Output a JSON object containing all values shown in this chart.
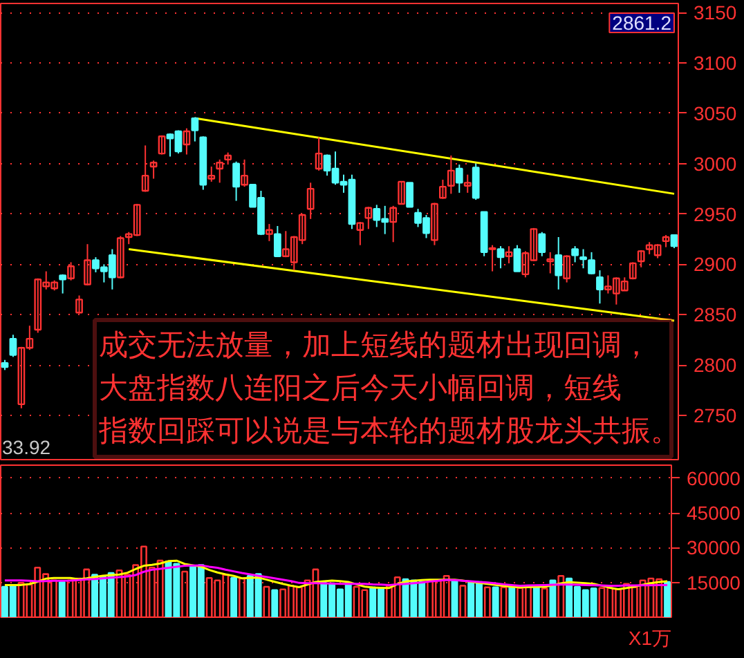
{
  "chart_data": [
    {
      "type": "candlestick",
      "categories": [
        null,
        null,
        null,
        null,
        null,
        null,
        null,
        null,
        null,
        null,
        null,
        null,
        null,
        null,
        null,
        null,
        null,
        null,
        null,
        null,
        null,
        null,
        null,
        null,
        null,
        null,
        null,
        null,
        null,
        null,
        null,
        null,
        null,
        null,
        null,
        null,
        null,
        null,
        null,
        null,
        null,
        null,
        null,
        null,
        null,
        null,
        null,
        null,
        null,
        null,
        null,
        null,
        null,
        null,
        null,
        null,
        null,
        null,
        null,
        null,
        null,
        null,
        null,
        null,
        null,
        null,
        null,
        null,
        null,
        null,
        null,
        null,
        null,
        null,
        null,
        null,
        null,
        null,
        null,
        null,
        null,
        null
      ],
      "ohlc": [
        [
          2802,
          2805,
          2795,
          2798
        ],
        [
          2826,
          2830,
          2808,
          2810
        ],
        [
          2761,
          2818,
          2757,
          2817
        ],
        [
          2817,
          2839,
          2815,
          2826
        ],
        [
          2835,
          2886,
          2832,
          2885
        ],
        [
          2878,
          2893,
          2875,
          2882
        ],
        [
          2876,
          2884,
          2874,
          2882
        ],
        [
          2889,
          2890,
          2871,
          2885
        ],
        [
          2886,
          2902,
          2884,
          2898
        ],
        [
          2852,
          2869,
          2851,
          2865
        ],
        [
          2880,
          2920,
          2879,
          2904
        ],
        [
          2904,
          2907,
          2892,
          2896
        ],
        [
          2897,
          2900,
          2882,
          2893
        ],
        [
          2909,
          2915,
          2875,
          2887
        ],
        [
          2887,
          2928,
          2886,
          2926
        ],
        [
          2927,
          2932,
          2920,
          2930
        ],
        [
          2929,
          2960,
          2928,
          2959
        ],
        [
          2973,
          3018,
          2972,
          2988
        ],
        [
          2997,
          3003,
          2985,
          3001
        ],
        [
          3010,
          3028,
          3009,
          3027
        ],
        [
          3029,
          3030,
          3007,
          3025
        ],
        [
          3032,
          3033,
          3010,
          3012
        ],
        [
          3019,
          3035,
          3009,
          3032
        ],
        [
          3045,
          3046,
          3022,
          3033
        ],
        [
          3026,
          3027,
          2974,
          2979
        ],
        [
          2985,
          2997,
          2982,
          2988
        ],
        [
          2995,
          3004,
          2981,
          3001
        ],
        [
          3004,
          3011,
          2999,
          3008
        ],
        [
          3000,
          3002,
          2963,
          2977
        ],
        [
          2979,
          3004,
          2977,
          2988
        ],
        [
          2979,
          2979,
          2957,
          2957
        ],
        [
          2966,
          2973,
          2929,
          2930
        ],
        [
          2930,
          2940,
          2923,
          2934
        ],
        [
          2930,
          2938,
          2908,
          2908
        ],
        [
          2908,
          2933,
          2907,
          2915
        ],
        [
          2902,
          2928,
          2894,
          2927
        ],
        [
          2924,
          2950,
          2920,
          2949
        ],
        [
          2955,
          2981,
          2945,
          2975
        ],
        [
          2995,
          3026,
          2993,
          3010
        ],
        [
          3008,
          3009,
          2988,
          2993
        ],
        [
          2995,
          3012,
          2979,
          2981
        ],
        [
          2982,
          2989,
          2971,
          2979
        ],
        [
          2984,
          2989,
          2935,
          2940
        ],
        [
          2934,
          2942,
          2919,
          2941
        ],
        [
          2946,
          2957,
          2935,
          2956
        ],
        [
          2955,
          2959,
          2937,
          2944
        ],
        [
          2945,
          2958,
          2930,
          2942
        ],
        [
          2942,
          2958,
          2922,
          2956
        ],
        [
          2960,
          2982,
          2960,
          2982
        ],
        [
          2981,
          2981,
          2957,
          2957
        ],
        [
          2951,
          2955,
          2937,
          2941
        ],
        [
          2946,
          2949,
          2926,
          2931
        ],
        [
          2924,
          2961,
          2919,
          2960
        ],
        [
          2966,
          2984,
          2965,
          2977
        ],
        [
          2978,
          3008,
          2970,
          2993
        ],
        [
          2995,
          2999,
          2971,
          2981
        ],
        [
          2978,
          2989,
          2971,
          2981
        ],
        [
          2996,
          3000,
          2964,
          2966
        ],
        [
          2952,
          2952,
          2908,
          2912
        ],
        [
          2915,
          2919,
          2893,
          2916
        ],
        [
          2915,
          2918,
          2896,
          2907
        ],
        [
          2908,
          2918,
          2901,
          2912
        ],
        [
          2915,
          2919,
          2893,
          2893
        ],
        [
          2890,
          2913,
          2887,
          2911
        ],
        [
          2904,
          2936,
          2903,
          2935
        ],
        [
          2930,
          2932,
          2908,
          2912
        ],
        [
          2903,
          2912,
          2891,
          2905
        ],
        [
          2909,
          2927,
          2875,
          2889
        ],
        [
          2886,
          2909,
          2882,
          2908
        ],
        [
          2915,
          2918,
          2902,
          2909
        ],
        [
          2907,
          2915,
          2896,
          2905
        ],
        [
          2904,
          2912,
          2890,
          2891
        ],
        [
          2887,
          2894,
          2861,
          2875
        ],
        [
          2875,
          2889,
          2871,
          2878
        ],
        [
          2871,
          2887,
          2860,
          2886
        ],
        [
          2874,
          2887,
          2874,
          2883
        ],
        [
          2886,
          2902,
          2885,
          2901
        ],
        [
          2903,
          2914,
          2897,
          2913
        ],
        [
          2915,
          2922,
          2910,
          2919
        ],
        [
          2909,
          2920,
          2906,
          2919
        ],
        [
          2923,
          2929,
          2917,
          2927
        ],
        [
          2929,
          2929,
          2916,
          2918
        ]
      ],
      "colors": [
        "#54fcfc",
        "#54fcfc",
        "#ff3232",
        "#ff3232",
        "#ff3232",
        "#ff3232",
        "#ff3232",
        "#54fcfc",
        "#ff3232",
        "#ff3232",
        "#ff3232",
        "#54fcfc",
        "#54fcfc",
        "#54fcfc",
        "#ff3232",
        "#ff3232",
        "#ff3232",
        "#ff3232",
        "#ff3232",
        "#ff3232",
        "#54fcfc",
        "#54fcfc",
        "#ff3232",
        "#54fcfc",
        "#54fcfc",
        "#ff3232",
        "#ff3232",
        "#ff3232",
        "#54fcfc",
        "#ff3232",
        "#54fcfc",
        "#54fcfc",
        "#ff3232",
        "#54fcfc",
        "#ff3232",
        "#ff3232",
        "#ff3232",
        "#ff3232",
        "#ff3232",
        "#54fcfc",
        "#54fcfc",
        "#54fcfc",
        "#54fcfc",
        "#ff3232",
        "#ff3232",
        "#54fcfc",
        "#54fcfc",
        "#ff3232",
        "#ff3232",
        "#54fcfc",
        "#54fcfc",
        "#54fcfc",
        "#ff3232",
        "#ff3232",
        "#ff3232",
        "#54fcfc",
        "#ff3232",
        "#54fcfc",
        "#54fcfc",
        "#ff3232",
        "#54fcfc",
        "#ff3232",
        "#54fcfc",
        "#ff3232",
        "#ff3232",
        "#54fcfc",
        "#ff3232",
        "#54fcfc",
        "#ff3232",
        "#54fcfc",
        "#54fcfc",
        "#54fcfc",
        "#54fcfc",
        "#ff3232",
        "#ff3232",
        "#ff3232",
        "#ff3232",
        "#ff3232",
        "#ff3232",
        "#ff3232",
        "#ff3232",
        "#54fcfc"
      ],
      "series": [
        {
          "type": "line",
          "color": "#ffff00",
          "values": [
            null,
            null,
            null,
            null,
            null,
            null,
            null,
            null,
            null,
            null,
            null,
            null,
            null,
            null,
            null,
            null,
            null,
            null,
            null,
            null,
            null,
            null,
            null,
            3045,
            null,
            null,
            null,
            null,
            null,
            null,
            null,
            null,
            null,
            null,
            null,
            null,
            null,
            null,
            null,
            null,
            null,
            null,
            null,
            null,
            null,
            null,
            null,
            null,
            null,
            null,
            null,
            null,
            null,
            null,
            null,
            null,
            null,
            null,
            null,
            null,
            null,
            null,
            null,
            null,
            null,
            null,
            null,
            null,
            null,
            null,
            null,
            null,
            null,
            null,
            null,
            null,
            null,
            null,
            null,
            null,
            null,
            2970
          ]
        },
        {
          "type": "line",
          "color": "#ffff00",
          "values": [
            null,
            null,
            null,
            null,
            null,
            null,
            null,
            null,
            null,
            null,
            null,
            null,
            null,
            null,
            null,
            2915,
            null,
            null,
            null,
            null,
            null,
            null,
            null,
            null,
            null,
            null,
            null,
            null,
            null,
            null,
            null,
            null,
            null,
            null,
            null,
            null,
            null,
            null,
            null,
            null,
            null,
            null,
            null,
            null,
            null,
            null,
            null,
            null,
            null,
            null,
            null,
            null,
            null,
            null,
            null,
            null,
            null,
            null,
            null,
            null,
            null,
            null,
            null,
            null,
            null,
            null,
            null,
            null,
            null,
            null,
            null,
            null,
            null,
            null,
            null,
            null,
            null,
            null,
            null,
            null,
            null,
            2844
          ]
        }
      ],
      "ylim": [
        2706,
        3159
      ],
      "yticks": [
        2750,
        2800,
        2850,
        2900,
        2950,
        3000,
        3050,
        3100,
        3150
      ],
      "tick_labels": "y",
      "grid": "y",
      "annotations": [
        "成交无法放量，加上短线的题材出现回调，",
        "大盘指数八连阳之后今天小幅回调，短线",
        "指数回踩可以说是与本轮的题材股龙头共振。",
        "33.92",
        "2861.2"
      ]
    },
    {
      "type": "bar",
      "categories": [
        null,
        null,
        null,
        null,
        null,
        null,
        null,
        null,
        null,
        null,
        null,
        null,
        null,
        null,
        null,
        null,
        null,
        null,
        null,
        null,
        null,
        null,
        null,
        null,
        null,
        null,
        null,
        null,
        null,
        null,
        null,
        null,
        null,
        null,
        null,
        null,
        null,
        null,
        null,
        null,
        null,
        null,
        null,
        null,
        null,
        null,
        null,
        null,
        null,
        null,
        null,
        null,
        null,
        null,
        null,
        null,
        null,
        null,
        null,
        null,
        null,
        null,
        null,
        null,
        null,
        null,
        null,
        null,
        null,
        null,
        null,
        null,
        null,
        null,
        null,
        null,
        null,
        null,
        null,
        null,
        null,
        null
      ],
      "values": [
        13100,
        13600,
        14800,
        14100,
        21400,
        18600,
        15900,
        15200,
        15900,
        16700,
        20600,
        18300,
        17500,
        19100,
        20200,
        18300,
        22500,
        30500,
        21400,
        24400,
        24100,
        23000,
        19700,
        22200,
        22500,
        16900,
        15900,
        18300,
        17000,
        16700,
        17800,
        18600,
        13100,
        11700,
        12000,
        13600,
        12900,
        15900,
        20600,
        14800,
        14600,
        12000,
        14600,
        13100,
        11700,
        12900,
        12400,
        13600,
        17200,
        16400,
        15900,
        15200,
        15900,
        15900,
        17800,
        15900,
        13600,
        15200,
        15200,
        12900,
        12900,
        12900,
        13600,
        12600,
        13600,
        12900,
        12400,
        15900,
        17800,
        16700,
        13100,
        11700,
        12400,
        12600,
        12600,
        12000,
        14400,
        12900,
        15900,
        16700,
        16400,
        15200
      ],
      "colors": [
        "#54fcfc",
        "#54fcfc",
        "#ff3232",
        "#ff3232",
        "#ff3232",
        "#ff3232",
        "#ff3232",
        "#54fcfc",
        "#ff3232",
        "#ff3232",
        "#ff3232",
        "#54fcfc",
        "#54fcfc",
        "#54fcfc",
        "#ff3232",
        "#ff3232",
        "#ff3232",
        "#ff3232",
        "#ff3232",
        "#ff3232",
        "#54fcfc",
        "#54fcfc",
        "#ff3232",
        "#54fcfc",
        "#54fcfc",
        "#ff3232",
        "#ff3232",
        "#ff3232",
        "#54fcfc",
        "#ff3232",
        "#54fcfc",
        "#54fcfc",
        "#ff3232",
        "#54fcfc",
        "#ff3232",
        "#ff3232",
        "#ff3232",
        "#ff3232",
        "#ff3232",
        "#54fcfc",
        "#54fcfc",
        "#54fcfc",
        "#54fcfc",
        "#ff3232",
        "#ff3232",
        "#54fcfc",
        "#54fcfc",
        "#ff3232",
        "#ff3232",
        "#54fcfc",
        "#54fcfc",
        "#54fcfc",
        "#ff3232",
        "#ff3232",
        "#ff3232",
        "#54fcfc",
        "#ff3232",
        "#54fcfc",
        "#54fcfc",
        "#ff3232",
        "#54fcfc",
        "#ff3232",
        "#54fcfc",
        "#ff3232",
        "#ff3232",
        "#54fcfc",
        "#ff3232",
        "#54fcfc",
        "#ff3232",
        "#54fcfc",
        "#54fcfc",
        "#54fcfc",
        "#54fcfc",
        "#ff3232",
        "#ff3232",
        "#ff3232",
        "#ff3232",
        "#ff3232",
        "#ff3232",
        "#ff3232",
        "#ff3232",
        "#54fcfc"
      ],
      "series": [
        {
          "type": "line",
          "color": "#ffff00",
          "values": [
            13900,
            13900,
            13900,
            14300,
            15300,
            16600,
            16900,
            16900,
            16900,
            16400,
            16800,
            17400,
            17900,
            18200,
            18400,
            19200,
            20800,
            22200,
            22600,
            23200,
            24200,
            24400,
            23000,
            22400,
            21800,
            20400,
            19300,
            18500,
            17800,
            16800,
            17000,
            17100,
            16200,
            15300,
            14400,
            13600,
            13000,
            14100,
            15200,
            15500,
            15800,
            15600,
            15200,
            14200,
            13200,
            12800,
            12700,
            12600,
            14300,
            15400,
            15700,
            16000,
            16200,
            16200,
            16200,
            16200,
            15800,
            15300,
            14800,
            14400,
            13900,
            13500,
            13100,
            12900,
            13000,
            13100,
            13100,
            13800,
            14600,
            15100,
            14900,
            14700,
            14400,
            13600,
            12700,
            12100,
            12600,
            13200,
            14000,
            14700,
            15200,
            15500
          ]
        },
        {
          "type": "line",
          "color": "#ff00ff",
          "values": [
            15900,
            15900,
            15900,
            15700,
            15500,
            15600,
            15700,
            15700,
            15800,
            16000,
            16300,
            16500,
            16800,
            17100,
            17300,
            17600,
            18200,
            19600,
            20500,
            20900,
            21300,
            21800,
            22200,
            22300,
            22400,
            21800,
            21300,
            20500,
            19800,
            19100,
            18500,
            17900,
            17400,
            16800,
            16200,
            15600,
            14800,
            14700,
            14700,
            14600,
            14500,
            14400,
            14400,
            14400,
            14400,
            14200,
            14100,
            13900,
            14200,
            14400,
            14700,
            15000,
            15400,
            15700,
            16100,
            16000,
            15700,
            15500,
            15200,
            15000,
            14600,
            14200,
            13900,
            13600,
            13700,
            13800,
            13900,
            14000,
            14100,
            14100,
            14000,
            13900,
            13800,
            13700,
            13600,
            13600,
            13700,
            13700,
            13800,
            13800,
            13900,
            13900
          ]
        }
      ],
      "ylim": [
        0,
        65600
      ],
      "yticks": [
        15000,
        30000,
        45000,
        60000
      ],
      "tick_labels": "y",
      "grid": "y",
      "annotations": [
        "X1万"
      ]
    }
  ]
}
